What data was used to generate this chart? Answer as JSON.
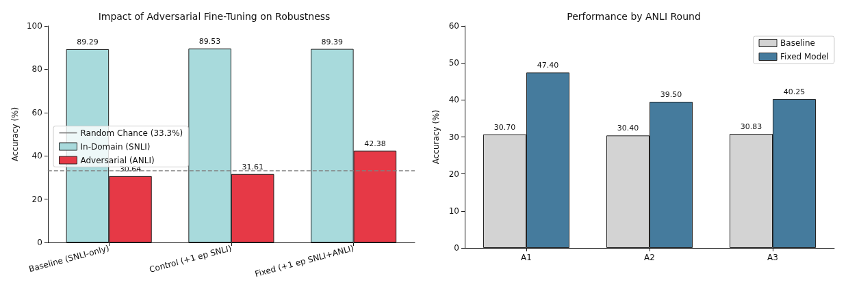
{
  "chart_data": [
    {
      "type": "bar",
      "title": "Impact of Adversarial Fine-Tuning on Robustness",
      "ylabel": "Accuracy (%)",
      "categories": [
        "Baseline (SNLI-only)",
        "Control (+1 ep SNLI)",
        "Fixed (+1 ep SNLI+ANLI)"
      ],
      "series": [
        {
          "name": "In-Domain (SNLI)",
          "color": "#a8dadc",
          "values": [
            89.29,
            89.53,
            89.39
          ],
          "value_labels": [
            "89.29",
            "89.53",
            "89.39"
          ]
        },
        {
          "name": "Adversarial (ANLI)",
          "color": "#e63946",
          "values": [
            30.64,
            31.61,
            42.38
          ],
          "value_labels": [
            "30.64",
            "31.61",
            "42.38"
          ]
        }
      ],
      "ylim": [
        0,
        100
      ],
      "yticks": [
        0,
        20,
        40,
        60,
        80,
        100
      ],
      "ref_lines": [
        {
          "axis": "y",
          "value": 33.3,
          "label": "Random Chance (33.3%)",
          "color": "#808080",
          "line_style": "dashed"
        }
      ],
      "legend": "center left",
      "grid": false
    },
    {
      "type": "bar",
      "title": "Performance by ANLI Round",
      "ylabel": "Accuracy (%)",
      "categories": [
        "A1",
        "A2",
        "A3"
      ],
      "series": [
        {
          "name": "Baseline",
          "color": "#d3d3d3",
          "values": [
            30.7,
            30.4,
            30.83
          ],
          "value_labels": [
            "30.70",
            "30.40",
            "30.83"
          ]
        },
        {
          "name": "Fixed Model",
          "color": "#457b9d",
          "values": [
            47.4,
            39.5,
            40.25
          ],
          "value_labels": [
            "47.40",
            "39.50",
            "40.25"
          ]
        }
      ],
      "ylim": [
        0,
        60
      ],
      "yticks": [
        0,
        10,
        20,
        30,
        40,
        50,
        60
      ],
      "legend": "top right",
      "grid": false
    }
  ]
}
